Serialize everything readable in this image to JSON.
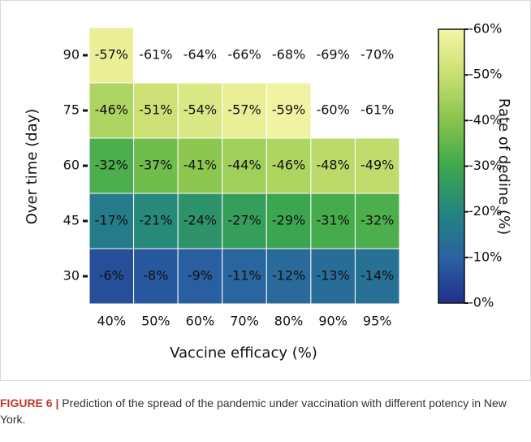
{
  "chart_data": {
    "type": "heatmap",
    "x_categories": [
      "40%",
      "50%",
      "60%",
      "70%",
      "80%",
      "90%",
      "95%"
    ],
    "y_categories": [
      30,
      45,
      60,
      75,
      90
    ],
    "values": [
      [
        -6,
        -8,
        -9,
        -11,
        -12,
        -13,
        -14
      ],
      [
        -17,
        -21,
        -24,
        -27,
        -29,
        -31,
        -32
      ],
      [
        -32,
        -37,
        -41,
        -44,
        -46,
        -48,
        -49
      ],
      [
        -46,
        -51,
        -54,
        -57,
        -59,
        -60,
        -61
      ],
      [
        -57,
        -61,
        -64,
        -66,
        -68,
        -69,
        -70
      ]
    ],
    "value_labels": [
      [
        "-6%",
        "-8%",
        "-9%",
        "-11%",
        "-12%",
        "-13%",
        "-14%"
      ],
      [
        "-17%",
        "-21%",
        "-24%",
        "-27%",
        "-29%",
        "-31%",
        "-32%"
      ],
      [
        "-32%",
        "-37%",
        "-41%",
        "-44%",
        "-46%",
        "-48%",
        "-49%"
      ],
      [
        "-46%",
        "-51%",
        "-54%",
        "-57%",
        "-59%",
        "-60%",
        "-61%"
      ],
      [
        "-57%",
        "-61%",
        "-64%",
        "-66%",
        "-68%",
        "-69%",
        "-70%"
      ]
    ],
    "shaded": [
      [
        true,
        true,
        true,
        true,
        true,
        true,
        true
      ],
      [
        true,
        true,
        true,
        true,
        true,
        true,
        true
      ],
      [
        true,
        true,
        true,
        true,
        true,
        true,
        true
      ],
      [
        true,
        true,
        true,
        true,
        true,
        false,
        false
      ],
      [
        true,
        false,
        false,
        false,
        false,
        false,
        false
      ]
    ],
    "xlabel": "Vaccine efficacy (%)",
    "ylabel": "Over time (day)",
    "colorbar_label": "Rate of dedine (%)",
    "clim": [
      0,
      -60
    ],
    "colorscale": [
      "#1f2f8c",
      "#2a63a2",
      "#23857f",
      "#3ea84b",
      "#86c44e",
      "#c8df70",
      "#f7f5a8"
    ],
    "cticks": [
      {
        "value": 0,
        "label": "-0%"
      },
      {
        "value": -10,
        "label": "-10%"
      },
      {
        "value": -20,
        "label": "-20%"
      },
      {
        "value": -30,
        "label": "-30%"
      },
      {
        "value": -40,
        "label": "-40%"
      },
      {
        "value": -50,
        "label": "-50%"
      },
      {
        "value": -60,
        "label": "-60%"
      }
    ]
  },
  "caption": {
    "label": "FIGURE 6 |",
    "text": "Prediction of the spread of the pandemic under vaccination with different potency in New York."
  }
}
